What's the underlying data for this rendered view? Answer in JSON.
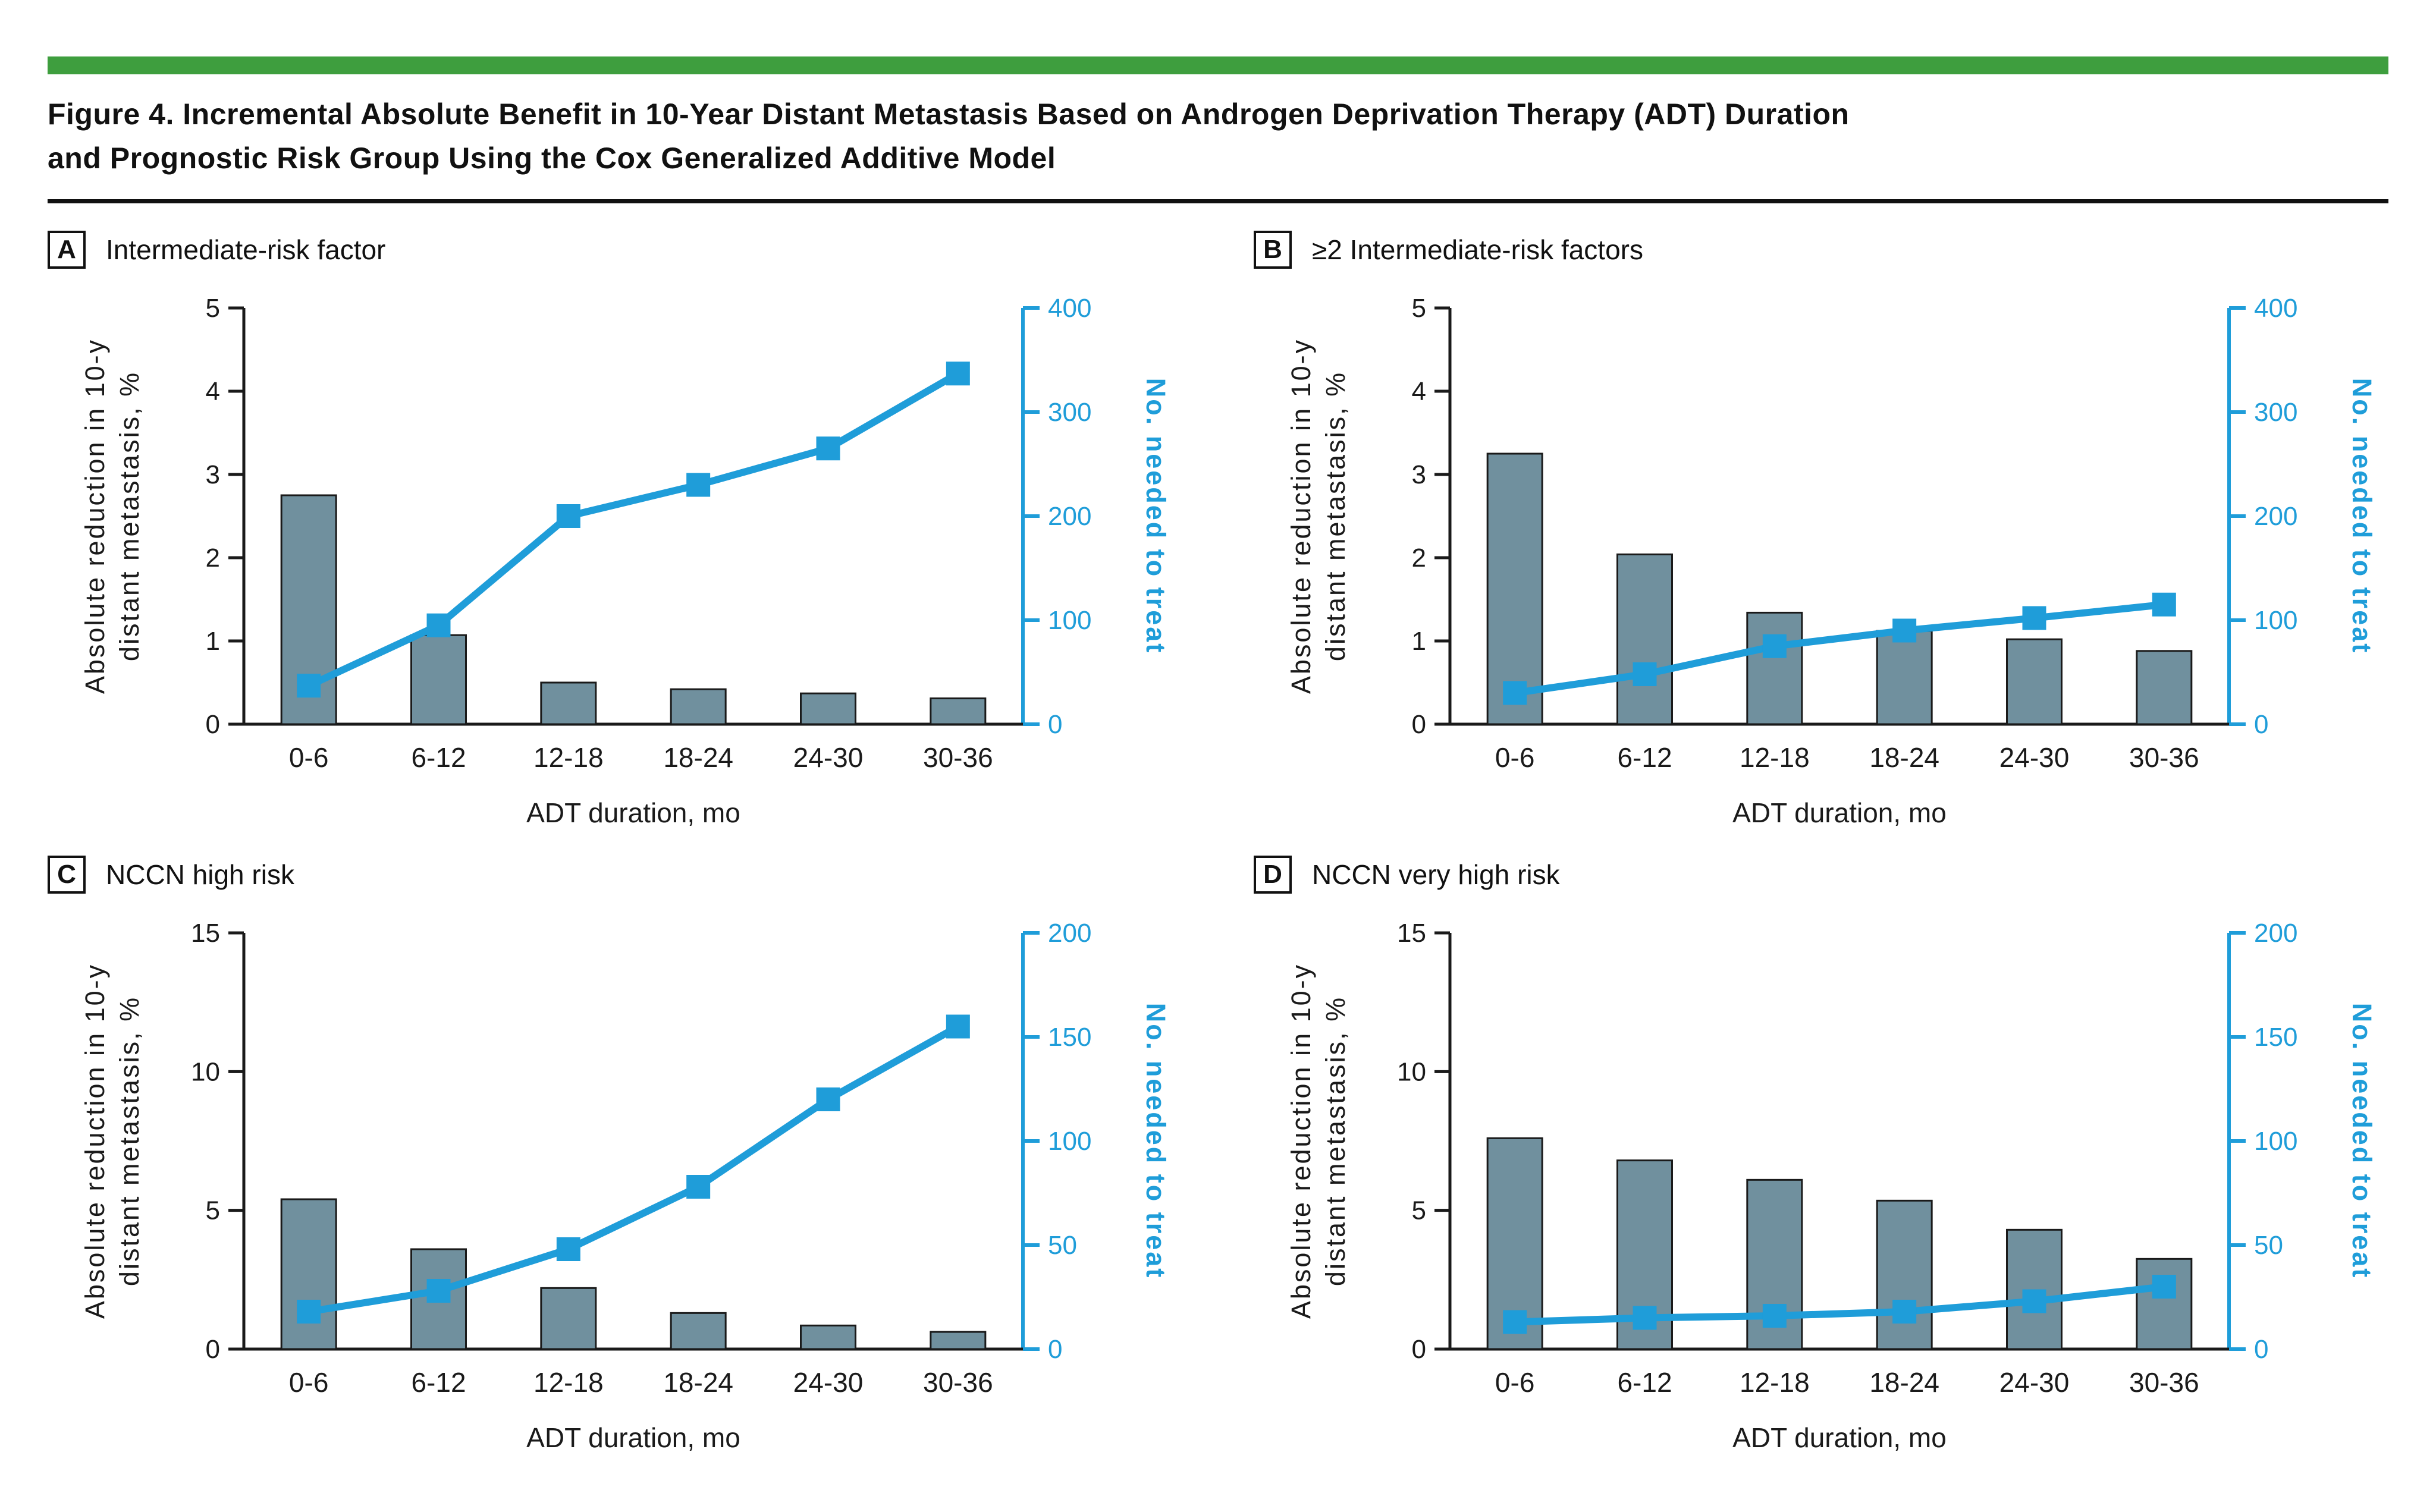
{
  "figure": {
    "title_line1": "Figure 4. Incremental Absolute Benefit in 10-Year Distant Metastasis Based on Androgen Deprivation Therapy (ADT) Duration",
    "title_line2": "and Prognostic Risk Group Using the Cox Generalized Additive Model"
  },
  "colors": {
    "accent_green": "#3E9E3E",
    "text": "#111111",
    "axis_black": "#1a1a1a",
    "bar_fill": "#70909E",
    "bar_outline": "#1a1a1a",
    "line_blue": "#1F9DD9"
  },
  "chart_data": [
    {
      "panel": "A",
      "title": "Intermediate-risk factor",
      "type": "bar+line",
      "categories": [
        "0-6",
        "6-12",
        "12-18",
        "18-24",
        "24-30",
        "30-36"
      ],
      "xlabel": "ADT duration, mo",
      "left_axis": {
        "label_line1": "Absolute reduction in 10-y",
        "label_line2": "distant metastasis, %",
        "range": [
          0,
          5
        ],
        "ticks": [
          0,
          1,
          2,
          3,
          4,
          5
        ]
      },
      "right_axis": {
        "label": "No. needed to treat",
        "range": [
          0,
          400
        ],
        "ticks": [
          0,
          100,
          200,
          300,
          400
        ]
      },
      "series": [
        {
          "name": "Absolute reduction in 10-y distant metastasis, %",
          "type": "bar",
          "axis": "left",
          "values": [
            2.75,
            1.07,
            0.5,
            0.42,
            0.37,
            0.31
          ],
          "color": "#70909E"
        },
        {
          "name": "No. needed to treat",
          "type": "line",
          "axis": "right",
          "values": [
            37,
            95,
            200,
            230,
            265,
            337
          ],
          "color": "#1F9DD9"
        }
      ]
    },
    {
      "panel": "B",
      "title": "≥2 Intermediate-risk factors",
      "type": "bar+line",
      "categories": [
        "0-6",
        "6-12",
        "12-18",
        "18-24",
        "24-30",
        "30-36"
      ],
      "xlabel": "ADT duration, mo",
      "left_axis": {
        "label_line1": "Absolute reduction in 10-y",
        "label_line2": "distant metastasis, %",
        "range": [
          0,
          5
        ],
        "ticks": [
          0,
          1,
          2,
          3,
          4,
          5
        ]
      },
      "right_axis": {
        "label": "No. needed to treat",
        "range": [
          0,
          400
        ],
        "ticks": [
          0,
          100,
          200,
          300,
          400
        ]
      },
      "series": [
        {
          "name": "Absolute reduction in 10-y distant metastasis, %",
          "type": "bar",
          "axis": "left",
          "values": [
            3.25,
            2.04,
            1.34,
            1.12,
            1.02,
            0.88
          ],
          "color": "#70909E"
        },
        {
          "name": "No. needed to treat",
          "type": "line",
          "axis": "right",
          "values": [
            30,
            48,
            75,
            90,
            102,
            115
          ],
          "color": "#1F9DD9"
        }
      ]
    },
    {
      "panel": "C",
      "title": "NCCN high risk",
      "type": "bar+line",
      "categories": [
        "0-6",
        "6-12",
        "12-18",
        "18-24",
        "24-30",
        "30-36"
      ],
      "xlabel": "ADT duration, mo",
      "left_axis": {
        "label_line1": "Absolute reduction in 10-y",
        "label_line2": "distant metastasis, %",
        "range": [
          0,
          15
        ],
        "ticks": [
          0,
          5,
          10,
          15
        ]
      },
      "right_axis": {
        "label": "No. needed to treat",
        "range": [
          0,
          200
        ],
        "ticks": [
          0,
          50,
          100,
          150,
          200
        ]
      },
      "series": [
        {
          "name": "Absolute reduction in 10-y distant metastasis, %",
          "type": "bar",
          "axis": "left",
          "values": [
            5.4,
            3.6,
            2.2,
            1.3,
            0.85,
            0.62
          ],
          "color": "#70909E"
        },
        {
          "name": "No. needed to treat",
          "type": "line",
          "axis": "right",
          "values": [
            18,
            28,
            48,
            78,
            120,
            155
          ],
          "color": "#1F9DD9"
        }
      ]
    },
    {
      "panel": "D",
      "title": "NCCN very high risk",
      "type": "bar+line",
      "categories": [
        "0-6",
        "6-12",
        "12-18",
        "18-24",
        "24-30",
        "30-36"
      ],
      "xlabel": "ADT duration, mo",
      "left_axis": {
        "label_line1": "Absolute reduction in 10-y",
        "label_line2": "distant metastasis, %",
        "range": [
          0,
          15
        ],
        "ticks": [
          0,
          5,
          10,
          15
        ]
      },
      "right_axis": {
        "label": "No. needed to treat",
        "range": [
          0,
          200
        ],
        "ticks": [
          0,
          50,
          100,
          150,
          200
        ]
      },
      "series": [
        {
          "name": "Absolute reduction in 10-y distant metastasis, %",
          "type": "bar",
          "axis": "left",
          "values": [
            7.6,
            6.8,
            6.1,
            5.35,
            4.3,
            3.25
          ],
          "color": "#70909E"
        },
        {
          "name": "No. needed to treat",
          "type": "line",
          "axis": "right",
          "values": [
            13,
            15,
            16,
            18,
            23,
            30
          ],
          "color": "#1F9DD9"
        }
      ]
    }
  ]
}
